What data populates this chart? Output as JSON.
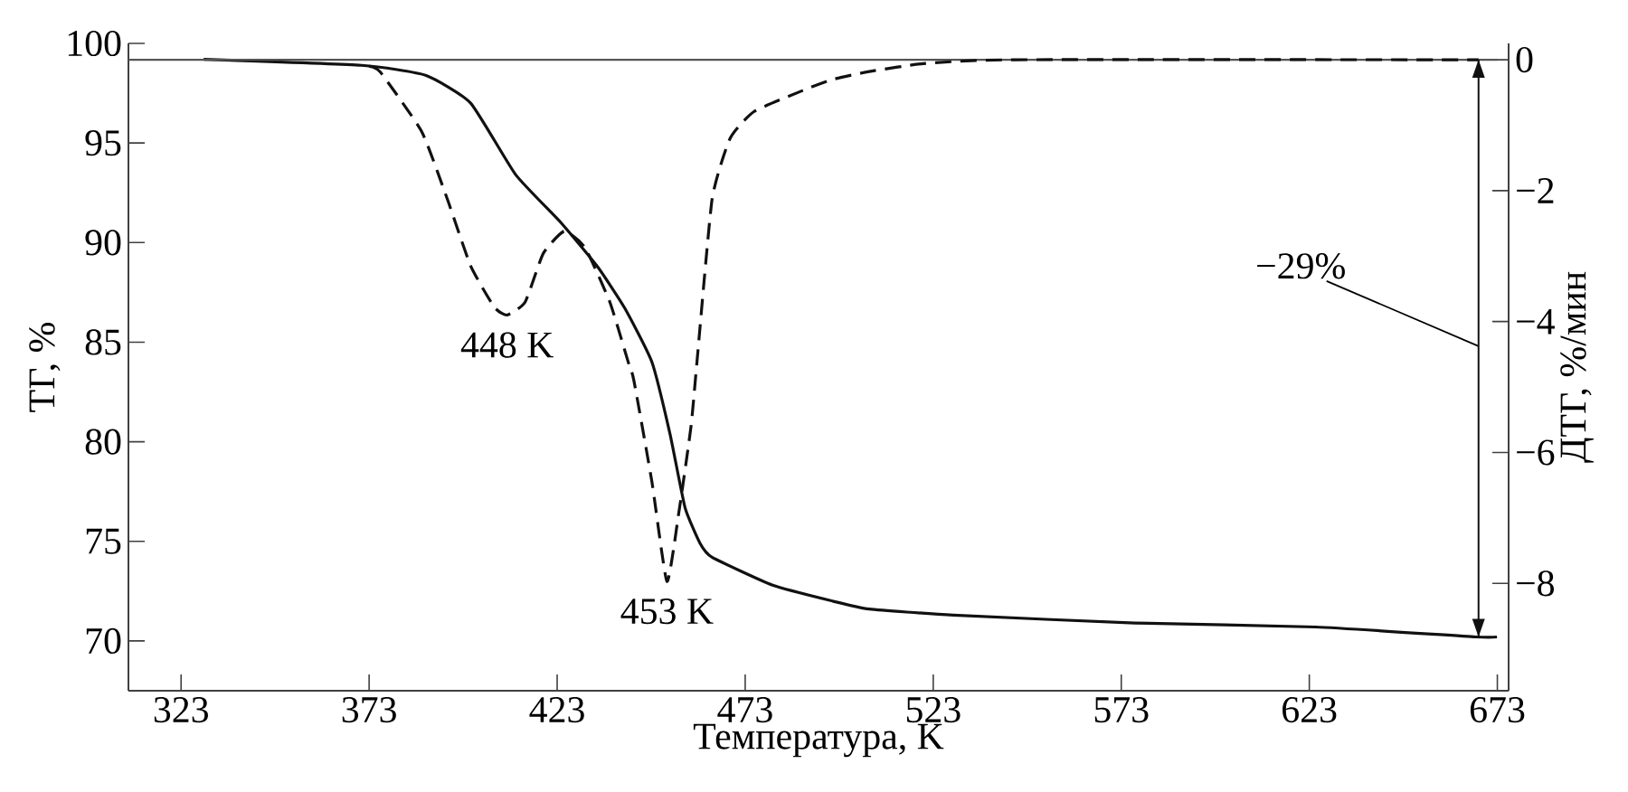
{
  "chart_data": {
    "type": "line",
    "xlabel": "Температура, K",
    "ylabel": "ТГ, %",
    "y2label": "ДТГ, %/мин",
    "xlim": [
      309,
      676
    ],
    "xticks": [
      323,
      373,
      423,
      473,
      523,
      573,
      623,
      673
    ],
    "ylim": [
      67.5,
      100
    ],
    "yticks": [
      70,
      75,
      80,
      85,
      90,
      95,
      100
    ],
    "y2lim": [
      -9.64,
      0.25
    ],
    "y2ticks": [
      0,
      {
        "value": -2,
        "label": "−2"
      },
      {
        "value": -4,
        "label": "−4"
      },
      {
        "value": -6,
        "label": "−6"
      },
      {
        "value": -8,
        "label": "−8"
      }
    ],
    "marker": "none",
    "series": [
      {
        "color": "#111111",
        "line_style": "solid",
        "axis": "y",
        "x": [
          329,
          371,
          388,
          400,
          412,
          424,
          433.7,
          441,
          448.2,
          453,
          457,
          461,
          464.2,
          480.3,
          496.3,
          506,
          528.4,
          576.6,
          624.7,
          667.2,
          672.9
        ],
        "values": [
          99.2,
          98.9,
          98.4,
          97.0,
          93.4,
          91.0,
          88.8,
          86.7,
          84.0,
          80.4,
          76.7,
          74.9,
          74.2,
          72.8,
          72.0,
          71.6,
          71.3,
          70.9,
          70.7,
          70.2,
          70.2
        ]
      },
      {
        "color": "#111111",
        "line_style": "dashed",
        "axis": "y2",
        "x": [
          373,
          376,
          387,
          393.8,
          400,
          406.3,
          409.7,
          414.5,
          419.3,
          424.9,
          430.4,
          437,
          441.8,
          443.4,
          448.2,
          452.2,
          455.4,
          458.6,
          460.2,
          464.2,
          469,
          475.4,
          488.3,
          496.3,
          506,
          520.4,
          544.5,
          668
        ],
        "values": [
          -0.1,
          -0.19,
          -1.1,
          -2.13,
          -3.15,
          -3.78,
          -3.9,
          -3.7,
          -2.96,
          -2.62,
          -2.87,
          -3.7,
          -4.6,
          -4.9,
          -6.45,
          -7.97,
          -6.9,
          -5.6,
          -4.6,
          -2.13,
          -1.2,
          -0.79,
          -0.47,
          -0.3,
          -0.18,
          -0.06,
          0,
          0
        ]
      }
    ],
    "ref_lines": [
      {
        "axis": "y2",
        "value": 0,
        "color": "#555555"
      },
      {
        "axis": "x",
        "value": 668,
        "color": "#111111"
      }
    ],
    "annotations": [
      "448 K",
      "453 K",
      {
        "text": "−29%",
        "x": 668,
        "y": 84.8
      }
    ]
  }
}
